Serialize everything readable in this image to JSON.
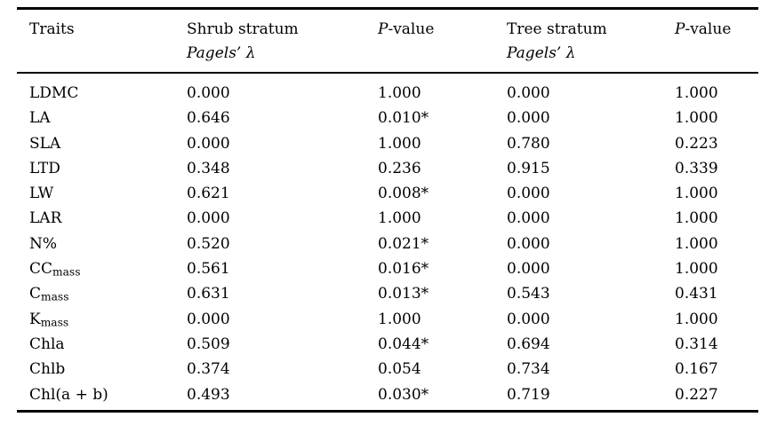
{
  "table": {
    "headers": {
      "traits": "Traits",
      "shrub": {
        "line1": "Shrub stratum",
        "line2": "Pagels’ λ"
      },
      "shrub_pvalue": {
        "prefix": "P",
        "suffix": "-value"
      },
      "tree": {
        "line1": "Tree stratum",
        "line2": "Pagels’ λ"
      },
      "tree_pvalue": {
        "prefix": "P",
        "suffix": "-value"
      }
    },
    "rows": [
      {
        "trait_main": "LDMC",
        "trait_sub": "",
        "shrub_lambda": "0.000",
        "shrub_p": "1.000",
        "tree_lambda": "0.000",
        "tree_p": "1.000"
      },
      {
        "trait_main": "LA",
        "trait_sub": "",
        "shrub_lambda": "0.646",
        "shrub_p": "0.010*",
        "tree_lambda": "0.000",
        "tree_p": "1.000"
      },
      {
        "trait_main": "SLA",
        "trait_sub": "",
        "shrub_lambda": "0.000",
        "shrub_p": "1.000",
        "tree_lambda": "0.780",
        "tree_p": "0.223"
      },
      {
        "trait_main": "LTD",
        "trait_sub": "",
        "shrub_lambda": "0.348",
        "shrub_p": "0.236",
        "tree_lambda": "0.915",
        "tree_p": "0.339"
      },
      {
        "trait_main": "LW",
        "trait_sub": "",
        "shrub_lambda": "0.621",
        "shrub_p": "0.008*",
        "tree_lambda": "0.000",
        "tree_p": "1.000"
      },
      {
        "trait_main": "LAR",
        "trait_sub": "",
        "shrub_lambda": "0.000",
        "shrub_p": "1.000",
        "tree_lambda": "0.000",
        "tree_p": "1.000"
      },
      {
        "trait_main": "N%",
        "trait_sub": "",
        "shrub_lambda": "0.520",
        "shrub_p": "0.021*",
        "tree_lambda": "0.000",
        "tree_p": "1.000"
      },
      {
        "trait_main": "CC",
        "trait_sub": "mass",
        "shrub_lambda": "0.561",
        "shrub_p": "0.016*",
        "tree_lambda": "0.000",
        "tree_p": "1.000"
      },
      {
        "trait_main": "C",
        "trait_sub": "mass",
        "shrub_lambda": "0.631",
        "shrub_p": "0.013*",
        "tree_lambda": "0.543",
        "tree_p": "0.431"
      },
      {
        "trait_main": "K",
        "trait_sub": "mass",
        "shrub_lambda": "0.000",
        "shrub_p": "1.000",
        "tree_lambda": "0.000",
        "tree_p": "1.000"
      },
      {
        "trait_main": "Chla",
        "trait_sub": "",
        "shrub_lambda": "0.509",
        "shrub_p": "0.044*",
        "tree_lambda": "0.694",
        "tree_p": "0.314"
      },
      {
        "trait_main": "Chlb",
        "trait_sub": "",
        "shrub_lambda": "0.374",
        "shrub_p": "0.054",
        "tree_lambda": "0.734",
        "tree_p": "0.167"
      },
      {
        "trait_main": "Chl(a + b)",
        "trait_sub": "",
        "shrub_lambda": "0.493",
        "shrub_p": "0.030*",
        "tree_lambda": "0.719",
        "tree_p": "0.227"
      }
    ]
  }
}
